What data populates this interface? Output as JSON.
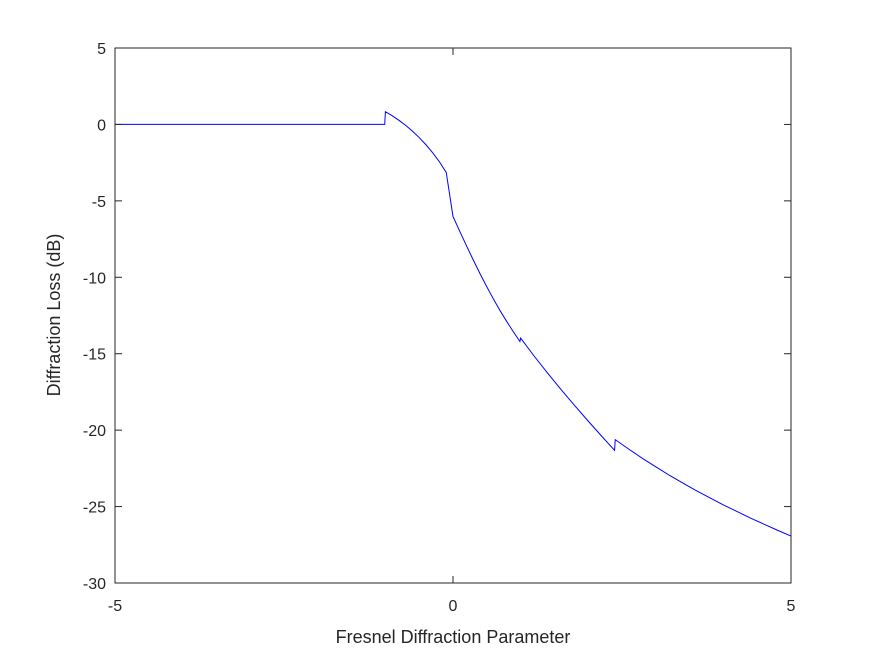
{
  "chart_data": {
    "type": "line",
    "title": "",
    "xlabel": "Fresnel Diffraction Parameter",
    "ylabel": "Diffraction Loss (dB)",
    "xlim": [
      -5,
      5
    ],
    "ylim": [
      -30,
      5
    ],
    "xticks": [
      -5,
      0,
      5
    ],
    "xtick_labels": [
      "-5",
      "0",
      "5"
    ],
    "yticks": [
      5,
      0,
      -5,
      -10,
      -15,
      -20,
      -25,
      -30
    ],
    "ytick_labels": [
      "5",
      "0",
      "-5",
      "-10",
      "-15",
      "-20",
      "-25",
      "-30"
    ],
    "grid": false,
    "legend": "none",
    "series": [
      {
        "color": "#0000ff",
        "x": [
          -5,
          -1.01,
          -1,
          -0.9,
          -0.8,
          -0.7,
          -0.6,
          -0.5,
          -0.4,
          -0.3,
          -0.2,
          -0.1,
          0,
          0.1,
          0.2,
          0.3,
          0.4,
          0.5,
          0.6,
          0.7,
          0.8,
          0.9,
          0.99,
          1.0,
          1.2,
          1.4,
          1.6,
          1.8,
          2.0,
          2.2,
          2.39,
          2.4,
          2.6,
          2.8,
          3.0,
          3.2,
          3.4,
          3.6,
          3.8,
          4.0,
          4.2,
          4.4,
          4.6,
          4.8,
          5.0
        ],
        "y": [
          0,
          0,
          0.83,
          0.57,
          0.27,
          -0.06,
          -0.44,
          -0.86,
          -1.33,
          -1.86,
          -2.45,
          -3.14,
          -6.02,
          -6.99,
          -7.94,
          -8.87,
          -9.77,
          -10.62,
          -11.44,
          -12.21,
          -12.93,
          -13.61,
          -14.2,
          -13.98,
          -15.15,
          -16.27,
          -17.35,
          -18.39,
          -19.41,
          -20.4,
          -21.32,
          -20.62,
          -21.24,
          -21.84,
          -22.4,
          -22.95,
          -23.46,
          -23.96,
          -24.43,
          -24.89,
          -25.32,
          -25.75,
          -26.15,
          -26.55,
          -26.93
        ]
      }
    ]
  }
}
